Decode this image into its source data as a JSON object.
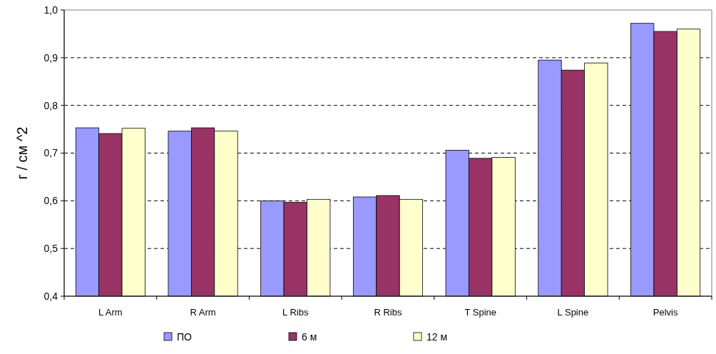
{
  "chart_data": {
    "type": "bar",
    "ylabel": "г / см ^2",
    "categories": [
      "L Arm",
      "R Arm",
      "L Ribs",
      "R Ribs",
      "T Spine",
      "L Spine",
      "Pelvis"
    ],
    "series": [
      {
        "name": "ПО",
        "color": "#9999ff",
        "values": [
          0.753,
          0.746,
          0.6,
          0.608,
          0.706,
          0.895,
          0.972
        ]
      },
      {
        "name": "6 м",
        "color": "#993366",
        "values": [
          0.741,
          0.753,
          0.597,
          0.611,
          0.689,
          0.874,
          0.955
        ]
      },
      {
        "name": "12 м",
        "color": "#ffffcc",
        "values": [
          0.752,
          0.746,
          0.603,
          0.603,
          0.691,
          0.889,
          0.96
        ]
      }
    ],
    "ylim": [
      0.4,
      1.0
    ],
    "yticks": [
      {
        "value": 0.4,
        "label": "0,4"
      },
      {
        "value": 0.5,
        "label": "0,5"
      },
      {
        "value": 0.6,
        "label": "0,6"
      },
      {
        "value": 0.7,
        "label": "0,7"
      },
      {
        "value": 0.8,
        "label": "0,8"
      },
      {
        "value": 0.9,
        "label": "0,9"
      },
      {
        "value": 1.0,
        "label": "1,0"
      }
    ],
    "grid": "y",
    "legend": "bottom"
  }
}
